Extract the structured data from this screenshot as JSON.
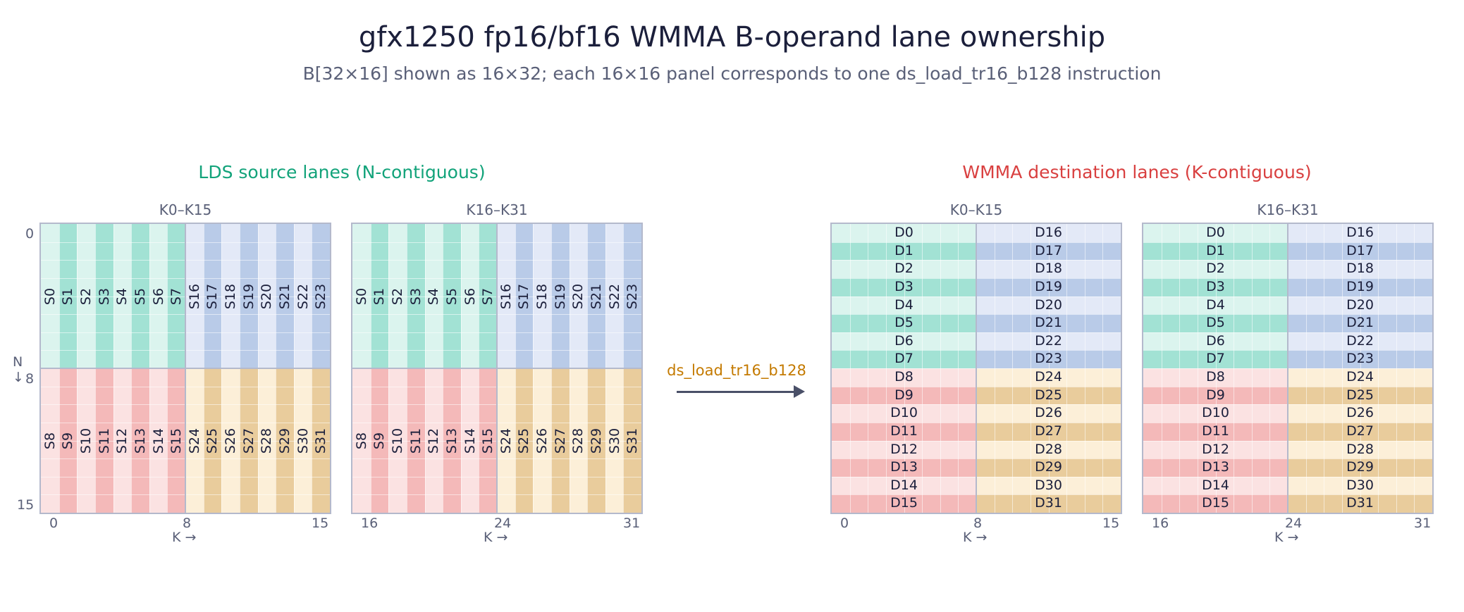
{
  "title": "gfx1250 fp16/bf16 WMMA B-operand lane ownership",
  "subtitle": "B[32×16] shown as 16×32; each 16×16 panel corresponds to one ds_load_tr16_b128 instruction",
  "left_section": {
    "heading": "LDS source lanes (N-contiguous)",
    "heading_color": "#12a37a",
    "panels": [
      {
        "label": "K0–K15",
        "x_ticks": [
          "0",
          "8",
          "15"
        ]
      },
      {
        "label": "K16–K31",
        "x_ticks": [
          "16",
          "24",
          "31"
        ]
      }
    ],
    "y_axis": {
      "label": "N",
      "arrow": "↓",
      "ticks": [
        "0",
        "8",
        "15"
      ]
    },
    "x_axis_label": "K →",
    "lanes": [
      "S0",
      "S1",
      "S2",
      "S3",
      "S4",
      "S5",
      "S6",
      "S7",
      "S16",
      "S17",
      "S18",
      "S19",
      "S20",
      "S21",
      "S22",
      "S23",
      "S8",
      "S9",
      "S10",
      "S11",
      "S12",
      "S13",
      "S14",
      "S15",
      "S24",
      "S25",
      "S26",
      "S27",
      "S28",
      "S29",
      "S30",
      "S31"
    ]
  },
  "arrow": {
    "label": "ds_load_tr16_b128",
    "color": "#c47a00"
  },
  "right_section": {
    "heading": "WMMA destination lanes (K-contiguous)",
    "heading_color": "#d94040",
    "panels": [
      {
        "label": "K0–K15",
        "x_ticks": [
          "0",
          "8",
          "15"
        ]
      },
      {
        "label": "K16–K31",
        "x_ticks": [
          "16",
          "24",
          "31"
        ]
      }
    ],
    "x_axis_label": "K →",
    "lanes_left": [
      "D0",
      "D1",
      "D2",
      "D3",
      "D4",
      "D5",
      "D6",
      "D7",
      "D8",
      "D9",
      "D10",
      "D11",
      "D12",
      "D13",
      "D14",
      "D15"
    ],
    "lanes_right": [
      "D16",
      "D17",
      "D18",
      "D19",
      "D20",
      "D21",
      "D22",
      "D23",
      "D24",
      "D25",
      "D26",
      "D27",
      "D28",
      "D29",
      "D30",
      "D31"
    ]
  },
  "colors": {
    "teal_light": "#dbf4ee",
    "teal_dark": "#a2e2d4",
    "blue_light": "#e3e9f7",
    "blue_dark": "#b9cbe8",
    "pink_light": "#fbe2e2",
    "pink_dark": "#f4b9b9",
    "tan_light": "#fcefd8",
    "tan_dark": "#e9cc9c"
  }
}
